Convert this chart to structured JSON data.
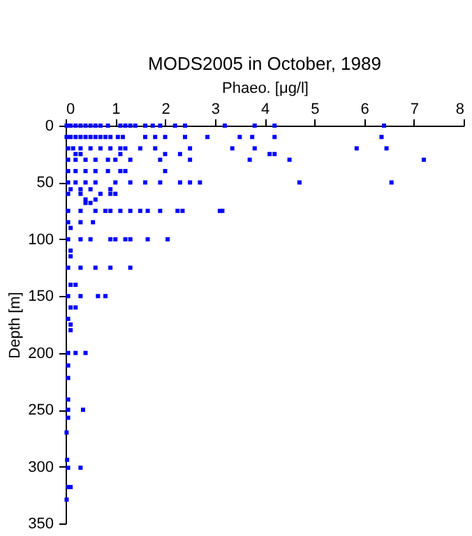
{
  "chart_data": {
    "type": "scatter",
    "title": "MODS2005 in October, 1989",
    "xlabel": "Phaeo. [μg/l]",
    "ylabel": "Depth [m]",
    "xlim": [
      0,
      8
    ],
    "xticks": [
      0,
      1,
      2,
      3,
      4,
      5,
      6,
      7,
      8
    ],
    "ylim": [
      350,
      0
    ],
    "yticks": [
      0,
      50,
      100,
      150,
      200,
      250,
      300,
      350
    ],
    "grid": false,
    "marker": "square",
    "series": [
      {
        "color": "#0000ff",
        "x": [
          0.02,
          0.1,
          0.2,
          0.3,
          0.4,
          0.5,
          0.6,
          0.7,
          0.85,
          1.1,
          1.2,
          1.3,
          1.4,
          1.6,
          1.75,
          1.9,
          2.2,
          2.4,
          3.2,
          3.8,
          4.2,
          6.4,
          0.02,
          0.1,
          0.2,
          0.3,
          0.4,
          0.5,
          0.6,
          0.7,
          0.8,
          0.9,
          1.05,
          1.15,
          1.6,
          1.8,
          2.0,
          2.4,
          2.85,
          3.5,
          3.75,
          4.2,
          6.35,
          0.05,
          0.15,
          0.3,
          0.5,
          0.7,
          0.9,
          1.1,
          1.2,
          1.5,
          1.8,
          2.5,
          3.35,
          3.8,
          5.85,
          6.45,
          0.2,
          0.3,
          1.1,
          2.0,
          2.3,
          4.1,
          4.2,
          0.05,
          0.2,
          0.4,
          0.6,
          0.85,
          1.0,
          1.3,
          1.9,
          2.5,
          3.7,
          4.5,
          7.2,
          0.05,
          0.2,
          0.4,
          0.6,
          0.85,
          1.1,
          1.2,
          2.0,
          0.05,
          0.2,
          0.4,
          0.6,
          1.0,
          1.3,
          1.6,
          1.9,
          2.3,
          2.5,
          2.7,
          4.7,
          6.55,
          0.1,
          0.3,
          0.5,
          0.9,
          0.05,
          0.3,
          0.7,
          0.9,
          1.0,
          0.4,
          0.6,
          0.4,
          0.5,
          0.05,
          0.3,
          0.6,
          0.8,
          0.9,
          1.1,
          1.3,
          1.5,
          1.65,
          1.9,
          2.25,
          2.35,
          3.1,
          3.15,
          0.05,
          0.3,
          0.55,
          0.1,
          0.05,
          0.3,
          0.5,
          0.9,
          1.0,
          1.2,
          1.3,
          1.65,
          2.05,
          0.1,
          0.1,
          0.05,
          0.3,
          0.6,
          0.9,
          1.3,
          0.1,
          0.2,
          0.05,
          0.3,
          0.65,
          0.8,
          0.1,
          0.2,
          0.05,
          0.1,
          0.1,
          0.05,
          0.2,
          0.4,
          0.05,
          0.05,
          0.05,
          0.05,
          0.35,
          0.05,
          0.02,
          0.03,
          0.05,
          0.3,
          0.05,
          0.1,
          0.02
        ],
        "values": [
          0,
          0,
          0,
          0,
          0,
          0,
          0,
          0,
          0,
          0,
          0,
          0,
          0,
          0,
          0,
          0,
          0,
          0,
          0,
          0,
          0,
          0,
          10,
          10,
          10,
          10,
          10,
          10,
          10,
          10,
          10,
          10,
          10,
          10,
          10,
          10,
          10,
          10,
          10,
          10,
          10,
          10,
          10,
          20,
          20,
          20,
          20,
          20,
          20,
          20,
          20,
          20,
          20,
          20,
          20,
          20,
          20,
          20,
          25,
          25,
          25,
          25,
          25,
          25,
          25,
          30,
          30,
          30,
          30,
          30,
          30,
          30,
          30,
          30,
          30,
          30,
          30,
          40,
          40,
          40,
          40,
          40,
          40,
          40,
          40,
          50,
          50,
          50,
          50,
          50,
          50,
          50,
          50,
          50,
          50,
          50,
          50,
          50,
          56,
          56,
          56,
          56,
          60,
          60,
          60,
          60,
          60,
          65,
          65,
          68,
          68,
          75,
          75,
          75,
          75,
          75,
          75,
          75,
          75,
          75,
          75,
          75,
          75,
          75,
          75,
          85,
          85,
          85,
          90,
          100,
          100,
          100,
          100,
          100,
          100,
          100,
          100,
          100,
          110,
          115,
          125,
          125,
          125,
          125,
          125,
          140,
          140,
          150,
          150,
          150,
          150,
          160,
          160,
          170,
          175,
          180,
          200,
          200,
          200,
          211,
          222,
          241,
          250,
          250,
          257,
          270,
          294,
          301,
          301,
          318,
          318,
          329
        ]
      }
    ]
  }
}
